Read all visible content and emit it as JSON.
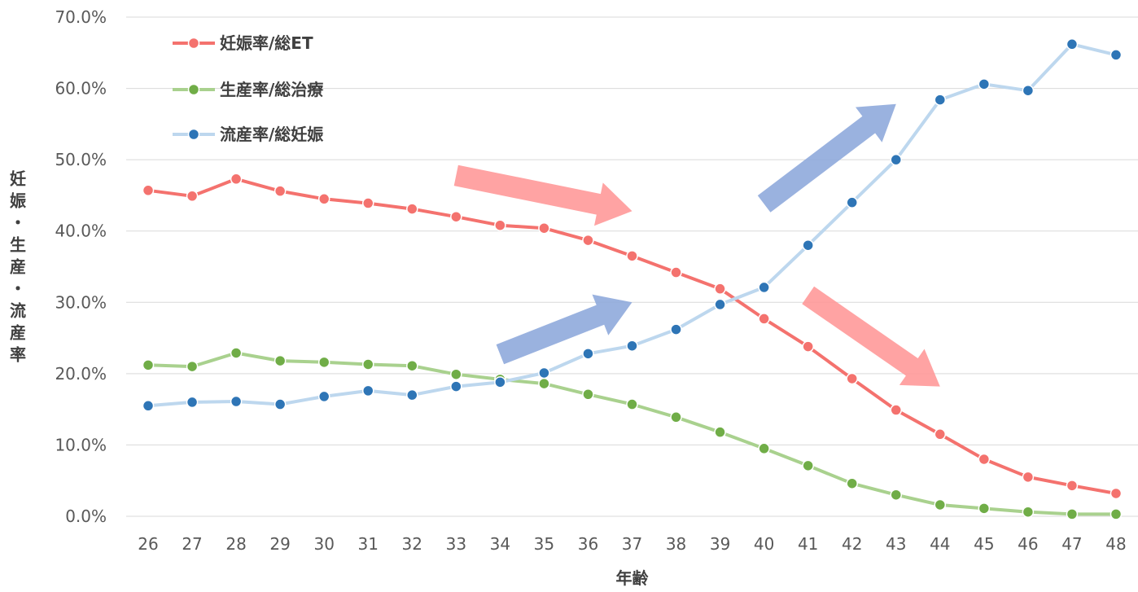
{
  "chart_data": {
    "type": "line",
    "xlabel": "年齢",
    "ylabel": "妊娠・生産・流産率",
    "ylim": [
      0,
      70
    ],
    "y_ticks": [
      "0.0%",
      "10.0%",
      "20.0%",
      "30.0%",
      "40.0%",
      "50.0%",
      "60.0%",
      "70.0%"
    ],
    "grid": "horizontal",
    "legend_position": "top-left",
    "categories": [
      "26",
      "27",
      "28",
      "29",
      "30",
      "31",
      "32",
      "33",
      "34",
      "35",
      "36",
      "37",
      "38",
      "39",
      "40",
      "41",
      "42",
      "43",
      "44",
      "45",
      "46",
      "47",
      "48"
    ],
    "series": [
      {
        "name": "妊娠率/総ET",
        "line_color": "#f4726e",
        "marker_color": "#f4726e",
        "values": [
          45.7,
          44.9,
          47.3,
          45.6,
          44.5,
          43.9,
          43.1,
          42.0,
          40.8,
          40.4,
          38.7,
          36.5,
          34.2,
          31.9,
          27.7,
          23.8,
          19.3,
          14.9,
          11.5,
          8.0,
          5.5,
          4.3,
          3.2
        ]
      },
      {
        "name": "生産率/総治療",
        "line_color": "#a9d18e",
        "marker_color": "#70ad47",
        "values": [
          21.2,
          21.0,
          22.9,
          21.8,
          21.6,
          21.3,
          21.1,
          19.9,
          19.2,
          18.6,
          17.1,
          15.7,
          13.9,
          11.8,
          9.5,
          7.1,
          4.6,
          3.0,
          1.6,
          1.1,
          0.6,
          0.3,
          0.3
        ]
      },
      {
        "name": "流産率/総妊娠",
        "line_color": "#bdd7ee",
        "marker_color": "#2e75b6",
        "values": [
          15.5,
          16.0,
          16.1,
          15.7,
          16.8,
          17.6,
          17.0,
          18.2,
          18.8,
          20.1,
          22.8,
          23.9,
          26.2,
          29.7,
          32.1,
          38.0,
          44.0,
          50.0,
          58.4,
          60.6,
          59.7,
          66.2,
          64.7
        ]
      }
    ],
    "annotations": [
      {
        "type": "arrow",
        "color": "#ff9999",
        "from": [
          "33",
          47.8
        ],
        "to": [
          "37",
          42.8
        ]
      },
      {
        "type": "arrow",
        "color": "#8faadc",
        "from": [
          "34",
          22.7
        ],
        "to": [
          "37",
          30.0
        ]
      },
      {
        "type": "arrow",
        "color": "#8faadc",
        "from": [
          "40",
          43.8
        ],
        "to": [
          "43",
          57.8
        ]
      },
      {
        "type": "arrow",
        "color": "#ff9999",
        "from": [
          "41",
          31.0
        ],
        "to": [
          "44",
          18.2
        ]
      }
    ]
  }
}
